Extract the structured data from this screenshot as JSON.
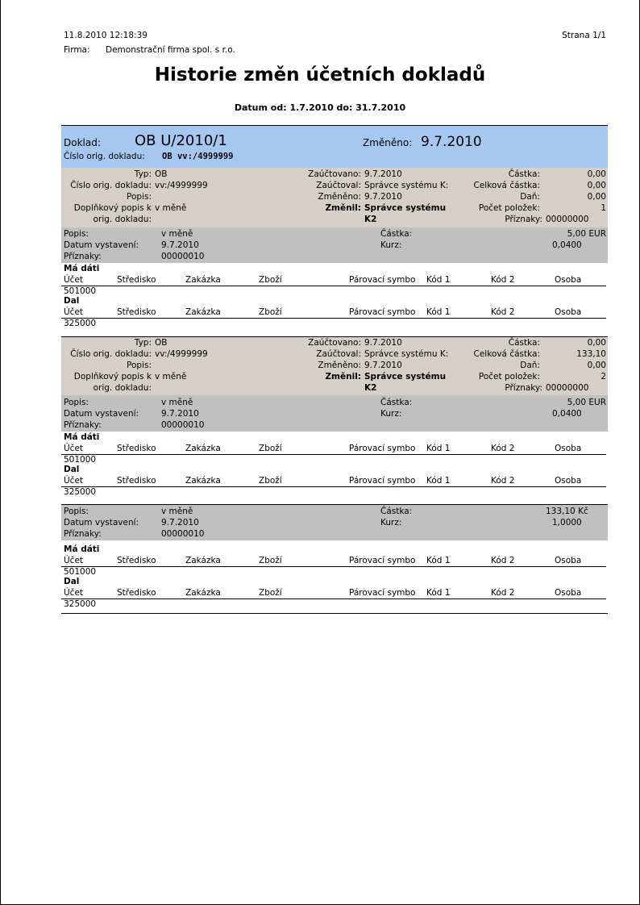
{
  "header": {
    "datetime": "11.8.2010 12:18:39",
    "page": "Strana 1/1",
    "firm_label": "Firma:",
    "firm": "Demonstrační firma spol. s r.o.",
    "title": "Historie změn účetních dokladů",
    "range": "Datum od: 1.7.2010  do: 31.7.2010"
  },
  "doc": {
    "doklad_label": "Doklad:",
    "doklad": "OB U/2010/1",
    "changed_label": "Změněno:",
    "changed": "9.7.2010",
    "orig_label": "Číslo orig. dokladu:",
    "orig": "OB vv:/4999999"
  },
  "labels": {
    "typ": "Typ:",
    "orig": "Číslo orig. dokladu:",
    "popis": "Popis:",
    "dopl1": "Doplňkový popis k",
    "dopl2": "orig. dokladu:",
    "zauctovano": "Zaúčtovano:",
    "zauctoval": "Zaúčtoval:",
    "zmeneno": "Změněno:",
    "zmenil": "Změnil:",
    "castka": "Částka:",
    "celkova": "Celková částka:",
    "dan": "Daň:",
    "pocet": "Počet položek:",
    "priznaky": "Příznaky:",
    "g_popis": "Popis:",
    "g_datum": "Datum vystavení:",
    "g_priznaky": "Příznaky:",
    "g_castka": "Částka:",
    "g_kurz": "Kurz:",
    "madati": "Má dáti",
    "dal": "Dal"
  },
  "columns": [
    "Účet",
    "Středisko",
    "Zakázka",
    "Zboží",
    "Párovací symbo",
    "Kód 1",
    "Kód 2",
    "Osoba"
  ],
  "versions": [
    {
      "typ": "OB",
      "orig": "vv:/4999999",
      "popis": "",
      "dopl": "v měně",
      "zauctovano": "9.7.2010",
      "zauctoval": "Správce systému K:",
      "zmeneno": "9.7.2010",
      "zmenil1": "Správce systému",
      "zmenil2": "K2",
      "castka": "0,00",
      "celkova": "0,00",
      "dan": "0,00",
      "pocet": "1",
      "priznaky": "00000000"
    },
    {
      "typ": "OB",
      "orig": "vv:/4999999",
      "popis": "",
      "dopl": "v měně",
      "zauctovano": "9.7.2010",
      "zauctoval": "Správce systému K:",
      "zmeneno": "9.7.2010",
      "zmenil1": "Správce systému",
      "zmenil2": "K2",
      "castka": "0,00",
      "celkova": "133,10",
      "dan": "0,00",
      "pocet": "2",
      "priznaky": "00000000"
    }
  ],
  "items": [
    {
      "popis": "v měně",
      "datum": "9.7.2010",
      "priznaky": "00000010",
      "castka": "5,00 EUR",
      "kurz": "0,0400",
      "madati": "501000",
      "dal": "325000"
    },
    {
      "popis": "v měně",
      "datum": "9.7.2010",
      "priznaky": "00000010",
      "castka": "5,00 EUR",
      "kurz": "0,0400",
      "madati": "501000",
      "dal": "325000"
    },
    {
      "popis": "v měně",
      "datum": "9.7.2010",
      "priznaky": "00000010",
      "castka": "133,10 Kč",
      "kurz": "1,0000",
      "madati": "501000",
      "dal": "325000"
    }
  ]
}
